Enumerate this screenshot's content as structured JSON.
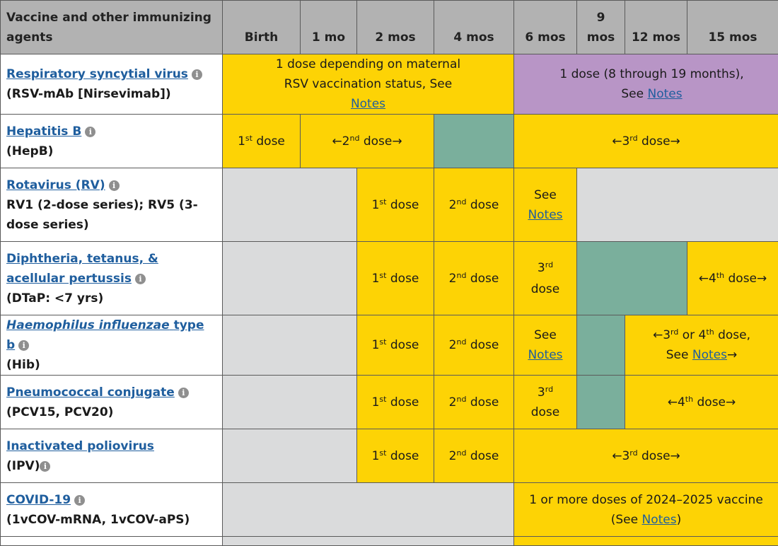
{
  "header": {
    "vaccine_col": "Vaccine and other immunizing agents",
    "ages": [
      "Birth",
      "1 mo",
      "2 mos",
      "4 mos",
      "6 mos",
      "9 mos",
      "12 mos",
      "15 mos"
    ]
  },
  "common": {
    "dose": "dose",
    "see": "See",
    "notes": "Notes",
    "st": "st",
    "nd": "nd",
    "rd": "rd",
    "th": "th",
    "or": "or",
    "info_glyph": "i",
    "left_arrow": "←",
    "right_arrow": "→"
  },
  "rows": {
    "rsv": {
      "name": "Respiratory syncytial virus",
      "sub": "(RSV-mAb [Nirsevimab])",
      "yellow_text": "1 dose depending on maternal RSV vaccination status,",
      "purple_text": "1 dose (8 through 19 months),"
    },
    "hepb": {
      "name": "Hepatitis B",
      "sub": "(HepB)"
    },
    "rv": {
      "name": "Rotavirus (RV)",
      "sub": "RV1 (2-dose series); RV5 (3-dose series)"
    },
    "dtap": {
      "name": "Diphtheria, tetanus, & acellular pertussis",
      "sub": "(DTaP: <7 yrs)"
    },
    "hib": {
      "name_italic": "Haemophilus influenzae",
      "name_rest": "type b",
      "sub": "(Hib)"
    },
    "pcv": {
      "name": "Pneumococcal conjugate",
      "sub": "(PCV15, PCV20)"
    },
    "ipv": {
      "name": "Inactivated poliovirus",
      "sub": "(IPV)"
    },
    "covid": {
      "name": "COVID-19",
      "sub": "(1vCOV-mRNA, 1vCOV-aPS)",
      "text": "1 or more doses of 2024–2025 vaccine"
    }
  },
  "colors": {
    "header_gray": "#b2b2b2",
    "dose_yellow": "#fdd305",
    "catchup_purple": "#b895c6",
    "range_green": "#7aaf9c",
    "not_recommended_gray": "#dadbdc",
    "link_blue": "#1f5e9e"
  }
}
